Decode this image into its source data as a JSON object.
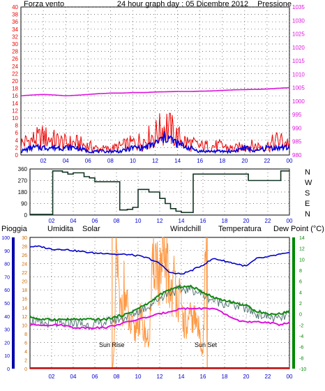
{
  "title": "24 hour graph day : 05 Dicembre 2012",
  "colors": {
    "wind": "#ee0000",
    "gust_avg": "#0000dd",
    "pressure": "#dd11dd",
    "direction": "#113322",
    "humidity": "#0000cc",
    "solar": "#ff9944",
    "windchill": "#557777",
    "temperature": "#118811",
    "dewpoint": "#dd11dd",
    "rain": "#ee0000",
    "grid": "#4a4a4a",
    "axis_green": "#008800"
  },
  "chart_data": [
    {
      "type": "line",
      "title": "24 hour graph day : 05 Dicembre 2012",
      "left_label": "Forza vento",
      "right_label": "Pressione",
      "x_ticks": [
        "02",
        "04",
        "06",
        "08",
        "10",
        "12",
        "14",
        "16",
        "18",
        "20",
        "22",
        "00"
      ],
      "y_left_ticks": [
        "0",
        "2",
        "4",
        "6",
        "8",
        "10",
        "12",
        "14",
        "16",
        "18",
        "20",
        "22",
        "24",
        "26",
        "28",
        "30",
        "32",
        "34",
        "36",
        "38",
        "40"
      ],
      "y_left_range": [
        0,
        40
      ],
      "y_right_ticks": [
        "980",
        "985",
        "990",
        "995",
        "1000",
        "1005",
        "1010",
        "1015",
        "1020",
        "1025",
        "1030",
        "1035"
      ],
      "y_right_range": [
        980,
        1035
      ],
      "grid": true,
      "x_hours": [
        0,
        1,
        2,
        3,
        4,
        5,
        6,
        7,
        8,
        9,
        10,
        11,
        12,
        13,
        14,
        15,
        16,
        17,
        18,
        19,
        20,
        21,
        22,
        23,
        24
      ],
      "series": [
        {
          "name": "Forza vento",
          "values": [
            4,
            5,
            6,
            5,
            4,
            4,
            3,
            2,
            2,
            3,
            4,
            5,
            7,
            10,
            6,
            4,
            3,
            3,
            3,
            2,
            3,
            3,
            3,
            5,
            4
          ]
        },
        {
          "values": [
            1,
            2,
            2,
            2,
            2,
            2,
            1,
            1,
            1,
            1,
            2,
            2,
            3,
            5,
            3,
            2,
            1,
            1,
            1,
            1,
            2,
            1,
            2,
            2,
            2
          ]
        },
        {
          "name": "Pressione",
          "values": [
            1002,
            1002.3,
            1002.5,
            1002.3,
            1002,
            1002.2,
            1002.5,
            1002.8,
            1003,
            1003,
            1003.2,
            1003.2,
            1003.4,
            1003.5,
            1003.6,
            1003.6,
            1003.7,
            1003.8,
            1004,
            1004.2,
            1004.3,
            1004.4,
            1004.5,
            1004.8,
            1005
          ]
        }
      ]
    },
    {
      "type": "line",
      "x_ticks": [
        "02",
        "04",
        "06",
        "08",
        "10",
        "12",
        "14",
        "16",
        "18",
        "20",
        "22",
        "00"
      ],
      "y_ticks": [
        "0",
        "90",
        "180",
        "270",
        "360"
      ],
      "y_range": [
        0,
        360
      ],
      "right_labels": [
        "N",
        "W",
        "S",
        "E",
        "N"
      ],
      "grid": true,
      "series": [
        {
          "values_steps": [
            [
              0,
              5
            ],
            [
              2,
              5
            ],
            [
              2.1,
              345
            ],
            [
              3,
              335
            ],
            [
              3.5,
              320
            ],
            [
              4,
              330
            ],
            [
              5,
              300
            ],
            [
              5.5,
              290
            ],
            [
              6,
              260
            ],
            [
              8.2,
              260
            ],
            [
              8.3,
              40
            ],
            [
              9,
              45
            ],
            [
              9.5,
              60
            ],
            [
              10,
              200
            ],
            [
              11,
              180
            ],
            [
              12,
              130
            ],
            [
              12.5,
              90
            ],
            [
              13,
              50
            ],
            [
              13.5,
              30
            ],
            [
              14,
              20
            ],
            [
              15,
              20
            ],
            [
              15.1,
              320
            ],
            [
              20,
              320
            ],
            [
              20.2,
              270
            ],
            [
              23,
              270
            ],
            [
              23.2,
              345
            ],
            [
              24,
              345
            ]
          ]
        }
      ]
    },
    {
      "type": "line",
      "left_labels": [
        "Pioggia",
        "Umidita",
        "Solar"
      ],
      "right_labels": [
        "Windchill",
        "Temperatura",
        "Dew Point (°C)"
      ],
      "x_ticks": [
        "02",
        "04",
        "06",
        "08",
        "10",
        "12",
        "14",
        "16",
        "18",
        "20",
        "22",
        "00"
      ],
      "y_hum_ticks": [
        "0",
        "10",
        "20",
        "30",
        "40",
        "50",
        "60",
        "70",
        "80",
        "90",
        "100"
      ],
      "y_hum_range": [
        0,
        100
      ],
      "y_rain_ticks": [
        "0",
        "2",
        "4",
        "6",
        "8",
        "10",
        "12",
        "14",
        "16",
        "18",
        "20",
        "22",
        "24",
        "26",
        "28",
        "30"
      ],
      "y_rain_range": [
        0,
        30
      ],
      "y_temp_ticks": [
        "-10",
        "-8",
        "-6",
        "-4",
        "-2",
        "0",
        "2",
        "4",
        "6",
        "8",
        "10",
        "12",
        "14"
      ],
      "y_temp_range": [
        -10,
        14
      ],
      "annotations": [
        "Sun Rise",
        "Sun Set"
      ],
      "sun_rise_hour": 7.6,
      "sun_set_hour": 16.4,
      "grid": true,
      "x_hours": [
        0,
        1,
        2,
        3,
        4,
        5,
        6,
        7,
        8,
        9,
        10,
        11,
        12,
        13,
        14,
        15,
        16,
        17,
        18,
        19,
        20,
        21,
        22,
        23,
        24
      ],
      "series": [
        {
          "name": "Umidita",
          "values": [
            93,
            93,
            91,
            91,
            90,
            89,
            88,
            88,
            87,
            87,
            86,
            84,
            80,
            73,
            72,
            75,
            79,
            84,
            82,
            80,
            78,
            84,
            85,
            87,
            88
          ]
        },
        {
          "name": "Temperatura",
          "values": [
            -0.5,
            -1,
            -1,
            -1,
            -1,
            -1,
            -1,
            -1,
            -0.5,
            0,
            1,
            2,
            3.5,
            4.5,
            5,
            5,
            4,
            3,
            2.5,
            2,
            1.5,
            0.5,
            0,
            0,
            0.5
          ]
        },
        {
          "name": "Windchill",
          "values": [
            -1,
            -2,
            -1.5,
            -2,
            -1.5,
            -2,
            -2,
            -1.5,
            -1,
            -0.5,
            0.5,
            1.5,
            3,
            4,
            4.5,
            4.5,
            3.5,
            2.5,
            2,
            1.5,
            1,
            0,
            -0.5,
            -1,
            0
          ]
        },
        {
          "name": "Dew Point (°C)",
          "values": [
            -2,
            -2,
            -2,
            -2,
            -2.5,
            -2.5,
            -2.5,
            -2.5,
            -2,
            -1.5,
            -1,
            -0.5,
            0,
            0.5,
            1,
            1,
            1,
            1,
            0,
            -1,
            -1.5,
            -1.5,
            -1.5,
            -2,
            -1.5
          ]
        },
        {
          "name": "Solar",
          "values_sparse": [
            [
              7.6,
              0
            ],
            [
              7.8,
              4
            ],
            [
              8,
              28
            ],
            [
              8.3,
              12
            ],
            [
              8.7,
              18
            ],
            [
              9.2,
              10
            ],
            [
              9.7,
              8
            ],
            [
              10,
              12
            ],
            [
              10.5,
              9
            ],
            [
              11,
              6
            ],
            [
              11.5,
              28
            ],
            [
              12,
              20
            ],
            [
              12.5,
              25
            ],
            [
              13,
              18
            ],
            [
              13.5,
              20
            ],
            [
              14,
              13
            ],
            [
              14.5,
              9
            ],
            [
              15,
              12
            ],
            [
              15.5,
              10
            ],
            [
              16,
              4
            ],
            [
              16.3,
              30
            ],
            [
              16.4,
              0
            ]
          ]
        },
        {
          "name": "Pioggia",
          "values": [
            0,
            0,
            0,
            0,
            0,
            0,
            0,
            0,
            0,
            0,
            0,
            0,
            0,
            0,
            0,
            0,
            0,
            0,
            0,
            0,
            0,
            0,
            0,
            0,
            0
          ]
        }
      ]
    }
  ]
}
